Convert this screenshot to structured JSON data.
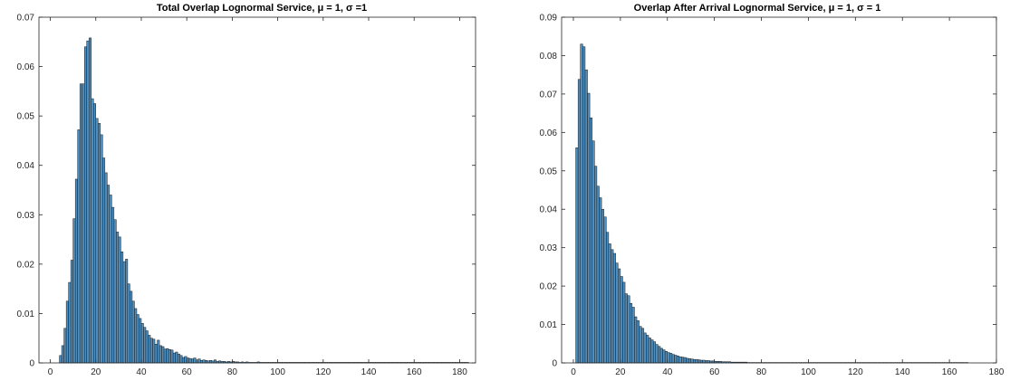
{
  "chart_data": [
    {
      "type": "bar",
      "title": "Total Overlap Lognormal Service, μ = 1, σ =1",
      "xlabel": "",
      "ylabel": "",
      "xlim": [
        -5,
        187
      ],
      "ylim": [
        0,
        0.07
      ],
      "xticks": [
        0,
        20,
        40,
        60,
        80,
        100,
        120,
        140,
        160,
        180
      ],
      "yticks": [
        0,
        0.01,
        0.02,
        0.03,
        0.04,
        0.05,
        0.06,
        0.07
      ],
      "bar_color": "#4f8fbf",
      "grid": false,
      "bin_start": 4,
      "bin_width": 1,
      "values": [
        0.0015,
        0.0035,
        0.007,
        0.0125,
        0.0163,
        0.0208,
        0.0292,
        0.0372,
        0.0472,
        0.0565,
        0.0565,
        0.064,
        0.0652,
        0.0658,
        0.0535,
        0.0525,
        0.0495,
        0.0485,
        0.0462,
        0.0415,
        0.0385,
        0.036,
        0.034,
        0.0315,
        0.029,
        0.0265,
        0.0255,
        0.0225,
        0.0205,
        0.021,
        0.016,
        0.0145,
        0.0125,
        0.011,
        0.0098,
        0.009,
        0.008,
        0.0072,
        0.0065,
        0.0056,
        0.005,
        0.0048,
        0.0038,
        0.0046,
        0.0035,
        0.0033,
        0.0028,
        0.0029,
        0.0027,
        0.0026,
        0.002,
        0.0022,
        0.0018,
        0.0015,
        0.0011,
        0.0013,
        0.001,
        0.0009,
        0.0008,
        0.001,
        0.0006,
        0.0008,
        0.0005,
        0.0006,
        0.0005,
        0.0004,
        0.0005,
        0.0004,
        0.0006,
        0.0003,
        0.0004,
        0.0003,
        0.0003,
        0.0002,
        0.0003,
        0.0002,
        0.0003,
        0.0002,
        0.0002,
        0.0001,
        0.0002,
        0.0001,
        0.0002,
        0.0001,
        0.0001,
        0.0001,
        0.0001,
        0.0002,
        0.0001,
        0.0001,
        0.0001,
        0.0001,
        0.0001,
        0.0001,
        0.0001,
        0.0001,
        0.0001,
        0.0001,
        0.0001,
        0.0001,
        0.0001,
        0.0001,
        0.0001,
        0.0001,
        0.0001,
        0.0001,
        0.0001,
        0.0001,
        0.0001,
        0.0001,
        0.0001,
        0.0001,
        0.0001,
        0.0001,
        0.0001,
        0.0001,
        0.0001,
        0.0001,
        0.0001,
        0.0001,
        0.0001,
        0.0001,
        0.0001,
        0.0001,
        0.0001,
        0.0001,
        0.0001,
        0.0001,
        0.0001,
        0.0001,
        0.0001,
        0.0001,
        0.0001,
        0.0001,
        0.0001,
        0.0001,
        0.0001,
        0.0001,
        0.0001,
        0.0001,
        0.0001,
        0.0001,
        0.0001,
        0.0001,
        0.0001,
        0.0001,
        0.0001,
        0.0001,
        0.0001,
        0.0001,
        0.0001,
        0.0001,
        0.0001,
        0.0001,
        0.0001,
        0.0001,
        0.0001,
        0.0001,
        0.0001,
        0.0001,
        0.0001,
        0.0001,
        0.0001,
        0.0001,
        0.0001,
        0.0001,
        0.0001,
        0.0001,
        0.0001,
        0.0001,
        0.0001,
        0.0001,
        0.0001,
        0.0001,
        0.0001,
        0.0001,
        0.0001,
        0.0001,
        0.0001,
        0.0001
      ]
    },
    {
      "type": "bar",
      "title": "Overlap After Arrival Lognormal Service, μ = 1, σ = 1",
      "xlabel": "",
      "ylabel": "",
      "xlim": [
        -5,
        180
      ],
      "ylim": [
        0,
        0.09
      ],
      "xticks": [
        0,
        20,
        40,
        60,
        80,
        100,
        120,
        140,
        160,
        180
      ],
      "yticks": [
        0,
        0.01,
        0.02,
        0.03,
        0.04,
        0.05,
        0.06,
        0.07,
        0.08,
        0.09
      ],
      "bar_color": "#4f8fbf",
      "grid": false,
      "bin_start": 1,
      "bin_width": 1,
      "values": [
        0.056,
        0.0738,
        0.083,
        0.0823,
        0.0763,
        0.0702,
        0.0638,
        0.0578,
        0.0512,
        0.046,
        0.043,
        0.04,
        0.038,
        0.034,
        0.031,
        0.0295,
        0.0285,
        0.026,
        0.0245,
        0.0225,
        0.021,
        0.018,
        0.0175,
        0.0155,
        0.0145,
        0.012,
        0.011,
        0.0095,
        0.009,
        0.0078,
        0.0072,
        0.0065,
        0.006,
        0.0055,
        0.0048,
        0.0043,
        0.0038,
        0.0034,
        0.003,
        0.0027,
        0.0025,
        0.0022,
        0.002,
        0.0018,
        0.0016,
        0.0015,
        0.0014,
        0.0012,
        0.0011,
        0.001,
        0.0009,
        0.0009,
        0.0008,
        0.0007,
        0.0007,
        0.0006,
        0.0006,
        0.0005,
        0.0005,
        0.0004,
        0.0004,
        0.0004,
        0.0003,
        0.0003,
        0.0003,
        0.0003,
        0.0002,
        0.0002,
        0.0002,
        0.0002,
        0.0002,
        0.0002,
        0.0002,
        0.0001,
        0.0001,
        0.0001,
        0.0001,
        0.0001,
        0.0001,
        0.0001,
        0.0001,
        0.0001,
        0.0001,
        0.0001,
        0.0001,
        0.0001,
        0.0001,
        0.0001,
        0.0001,
        0.0001,
        0.0001,
        0.0001,
        0.0001,
        0.0001,
        0.0001,
        0.0001,
        0.0001,
        0.0001,
        0.0001,
        0.0001,
        0.0001,
        0.0001,
        0.0001,
        0.0001,
        0.0001,
        0.0001,
        0.0001,
        0.0001,
        0.0001,
        0.0001,
        0.0001,
        0.0001,
        0.0001,
        0.0001,
        0.0001,
        0.0001,
        0.0001,
        0.0001,
        0.0001,
        0.0001,
        0.0001,
        0.0001,
        0.0001,
        0.0001,
        0.0001,
        0.0001,
        0.0001,
        0.0001,
        0.0001,
        0.0001,
        0.0001,
        0.0001,
        0.0001,
        0.0001,
        0.0001,
        0.0001,
        0.0001,
        0.0001,
        0.0001,
        0.0001,
        0.0001,
        0.0001,
        0.0001,
        0.0001,
        0.0001,
        0.0001,
        0.0001,
        0.0001,
        0.0001,
        0.0001,
        0.0001,
        0.0001,
        0.0001,
        0.0001,
        0.0001,
        0.0001,
        0.0001,
        0.0001,
        0.0001,
        0.0001,
        0.0001,
        0.0001,
        0.0001,
        0.0001,
        0.0001,
        0.0001,
        0.0001
      ]
    }
  ]
}
